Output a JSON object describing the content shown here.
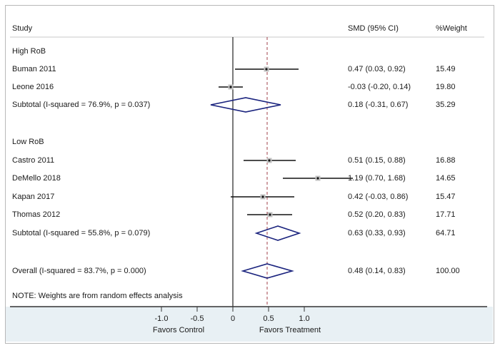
{
  "chart_data": {
    "type": "forest",
    "columns": {
      "study": "Study",
      "effect": "SMD (95% CI)",
      "weight": "%Weight"
    },
    "groups": [
      {
        "label": "High RoB",
        "studies": [
          {
            "name": "Buman 2011",
            "smd": 0.47,
            "lo": 0.03,
            "hi": 0.92,
            "ci_text": "0.47 (0.03, 0.92)",
            "weight": "15.49"
          },
          {
            "name": "Leone 2016",
            "smd": -0.03,
            "lo": -0.2,
            "hi": 0.14,
            "ci_text": "-0.03 (-0.20, 0.14)",
            "weight": "19.80"
          }
        ],
        "subtotal": {
          "label": "Subtotal  (I-squared = 76.9%, p = 0.037)",
          "smd": 0.18,
          "lo": -0.31,
          "hi": 0.67,
          "ci_text": "0.18 (-0.31, 0.67)",
          "weight": "35.29"
        }
      },
      {
        "label": "Low RoB",
        "studies": [
          {
            "name": "Castro 2011",
            "smd": 0.51,
            "lo": 0.15,
            "hi": 0.88,
            "ci_text": "0.51 (0.15, 0.88)",
            "weight": "16.88"
          },
          {
            "name": "DeMello 2018",
            "smd": 1.19,
            "lo": 0.7,
            "hi": 1.68,
            "ci_text": "1.19 (0.70, 1.68)",
            "weight": "14.65"
          },
          {
            "name": "Kapan 2017",
            "smd": 0.42,
            "lo": -0.03,
            "hi": 0.86,
            "ci_text": "0.42 (-0.03, 0.86)",
            "weight": "15.47"
          },
          {
            "name": "Thomas 2012",
            "smd": 0.52,
            "lo": 0.2,
            "hi": 0.83,
            "ci_text": "0.52 (0.20, 0.83)",
            "weight": "17.71"
          }
        ],
        "subtotal": {
          "label": "Subtotal  (I-squared = 55.8%, p = 0.079)",
          "smd": 0.63,
          "lo": 0.33,
          "hi": 0.93,
          "ci_text": "0.63 (0.33, 0.93)",
          "weight": "64.71"
        }
      }
    ],
    "overall": {
      "label": "Overall  (I-squared = 83.7%, p = 0.000)",
      "smd": 0.48,
      "lo": 0.14,
      "hi": 0.83,
      "ci_text": "0.48 (0.14, 0.83)",
      "weight": "100.00"
    },
    "note": "NOTE: Weights are from random effects analysis",
    "x_ticks": [
      -1.0,
      -0.5,
      0,
      0.5,
      1.0
    ],
    "x_tick_labels": [
      "-1.0",
      "-0.5",
      "0",
      "0.5",
      "1.0"
    ],
    "null_line": 0,
    "overall_line": 0.48,
    "xlabel_left": "Favors Control",
    "xlabel_right": "Favors Treatment",
    "colors": {
      "diamond": "#1a237e",
      "overall_line": "#a0404a",
      "box": "#c0c0c0",
      "axis_band": "#e8f0f4"
    }
  }
}
